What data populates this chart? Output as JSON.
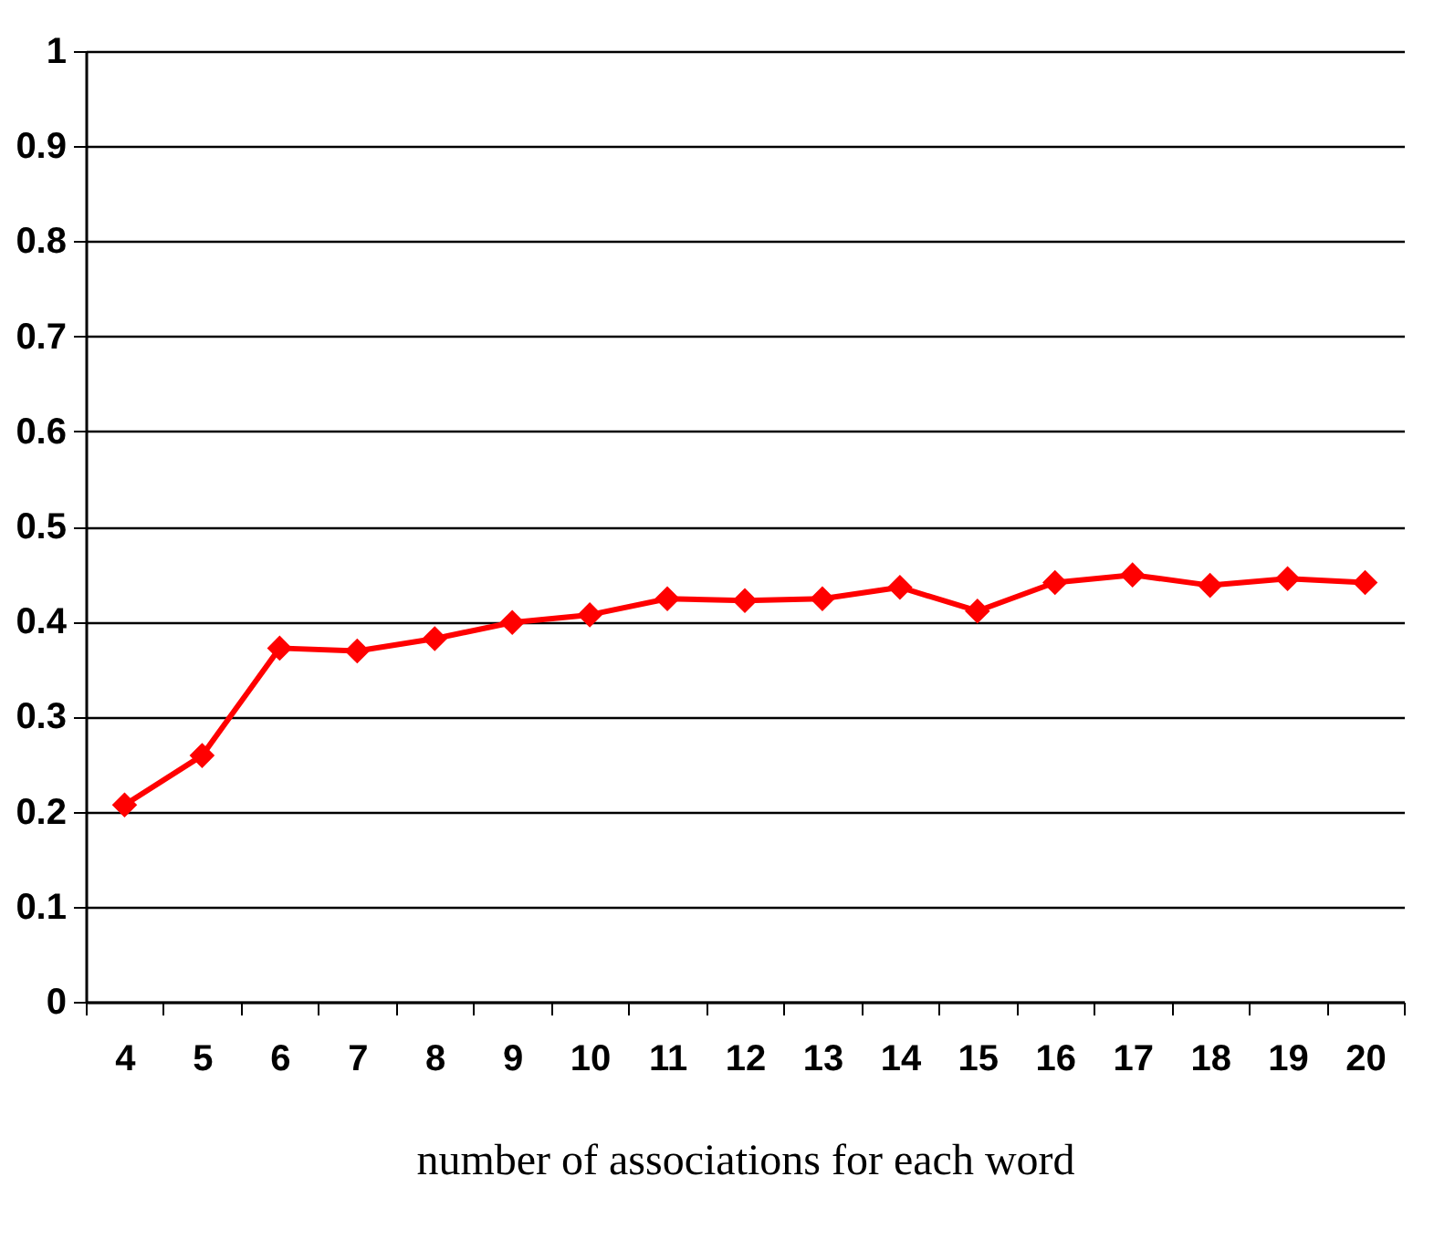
{
  "chart_data": {
    "type": "line",
    "xlabel": "number of associations for each word",
    "categories": [
      "4",
      "5",
      "6",
      "7",
      "8",
      "9",
      "10",
      "11",
      "12",
      "13",
      "14",
      "15",
      "16",
      "17",
      "18",
      "19",
      "20"
    ],
    "series": [
      {
        "color": "#ff0000",
        "values": [
          0.207,
          0.259,
          0.372,
          0.369,
          0.382,
          0.399,
          0.407,
          0.424,
          0.422,
          0.424,
          0.436,
          0.411,
          0.441,
          0.449,
          0.438,
          0.445,
          0.441
        ]
      }
    ],
    "ylim": [
      0,
      1
    ],
    "yticks": [
      0,
      0.1,
      0.2,
      0.3,
      0.4,
      0.5,
      0.6,
      0.7,
      0.8,
      0.9,
      1
    ],
    "grid": "y",
    "marker": "diamond",
    "line_style": "solid"
  }
}
